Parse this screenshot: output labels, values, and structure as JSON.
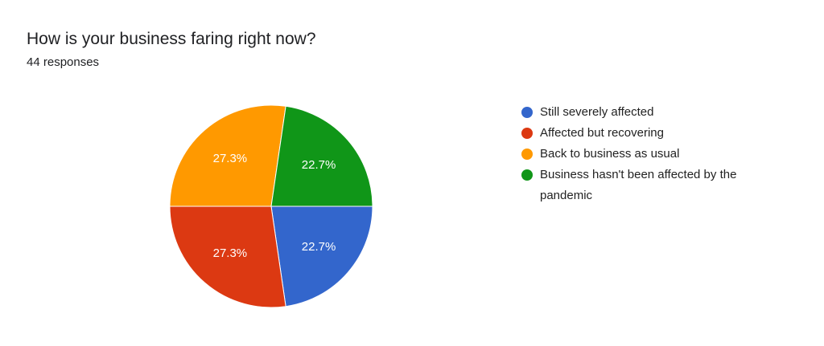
{
  "chart_data": {
    "type": "pie",
    "title": "How is your business faring right now?",
    "subtitle": "44 responses",
    "categories": [
      "Still severely affected",
      "Affected but recovering",
      "Back to business as usual",
      "Business hasn't been affected by the pandemic"
    ],
    "values": [
      22.7,
      27.3,
      27.3,
      22.7
    ],
    "value_labels": [
      "22.7%",
      "27.3%",
      "27.3%",
      "22.7%"
    ],
    "colors": [
      "#3366cc",
      "#dc3912",
      "#ff9900",
      "#109618"
    ],
    "legend": "right"
  }
}
